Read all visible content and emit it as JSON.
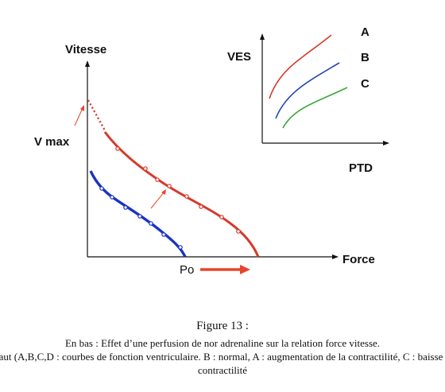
{
  "main_diagram": {
    "y_label": "Vitesse",
    "x_label": "Force",
    "vmax_label": "V max",
    "po_label": "Po"
  },
  "inset": {
    "y_label": "VES",
    "x_label": "PTD",
    "curves": [
      {
        "label": "A",
        "color": "#d73a2c"
      },
      {
        "label": "B",
        "color": "#2546b8"
      },
      {
        "label": "C",
        "color": "#3aa63a"
      }
    ]
  },
  "curve_colors": {
    "red": "#d73a2c",
    "blue": "#1a33c4",
    "arrow": "#e8452a"
  },
  "caption": {
    "title": "Figure 13 :",
    "line1": "En bas : Effet d’une perfusion de nor adrenaline sur la relation force vitesse.",
    "line2": "En haut (A,B,C,D : courbes de fonction ventriculaire. B : normal, A : augmentation de la contractilité, C : baisse de la",
    "line3": "contractilité"
  }
}
